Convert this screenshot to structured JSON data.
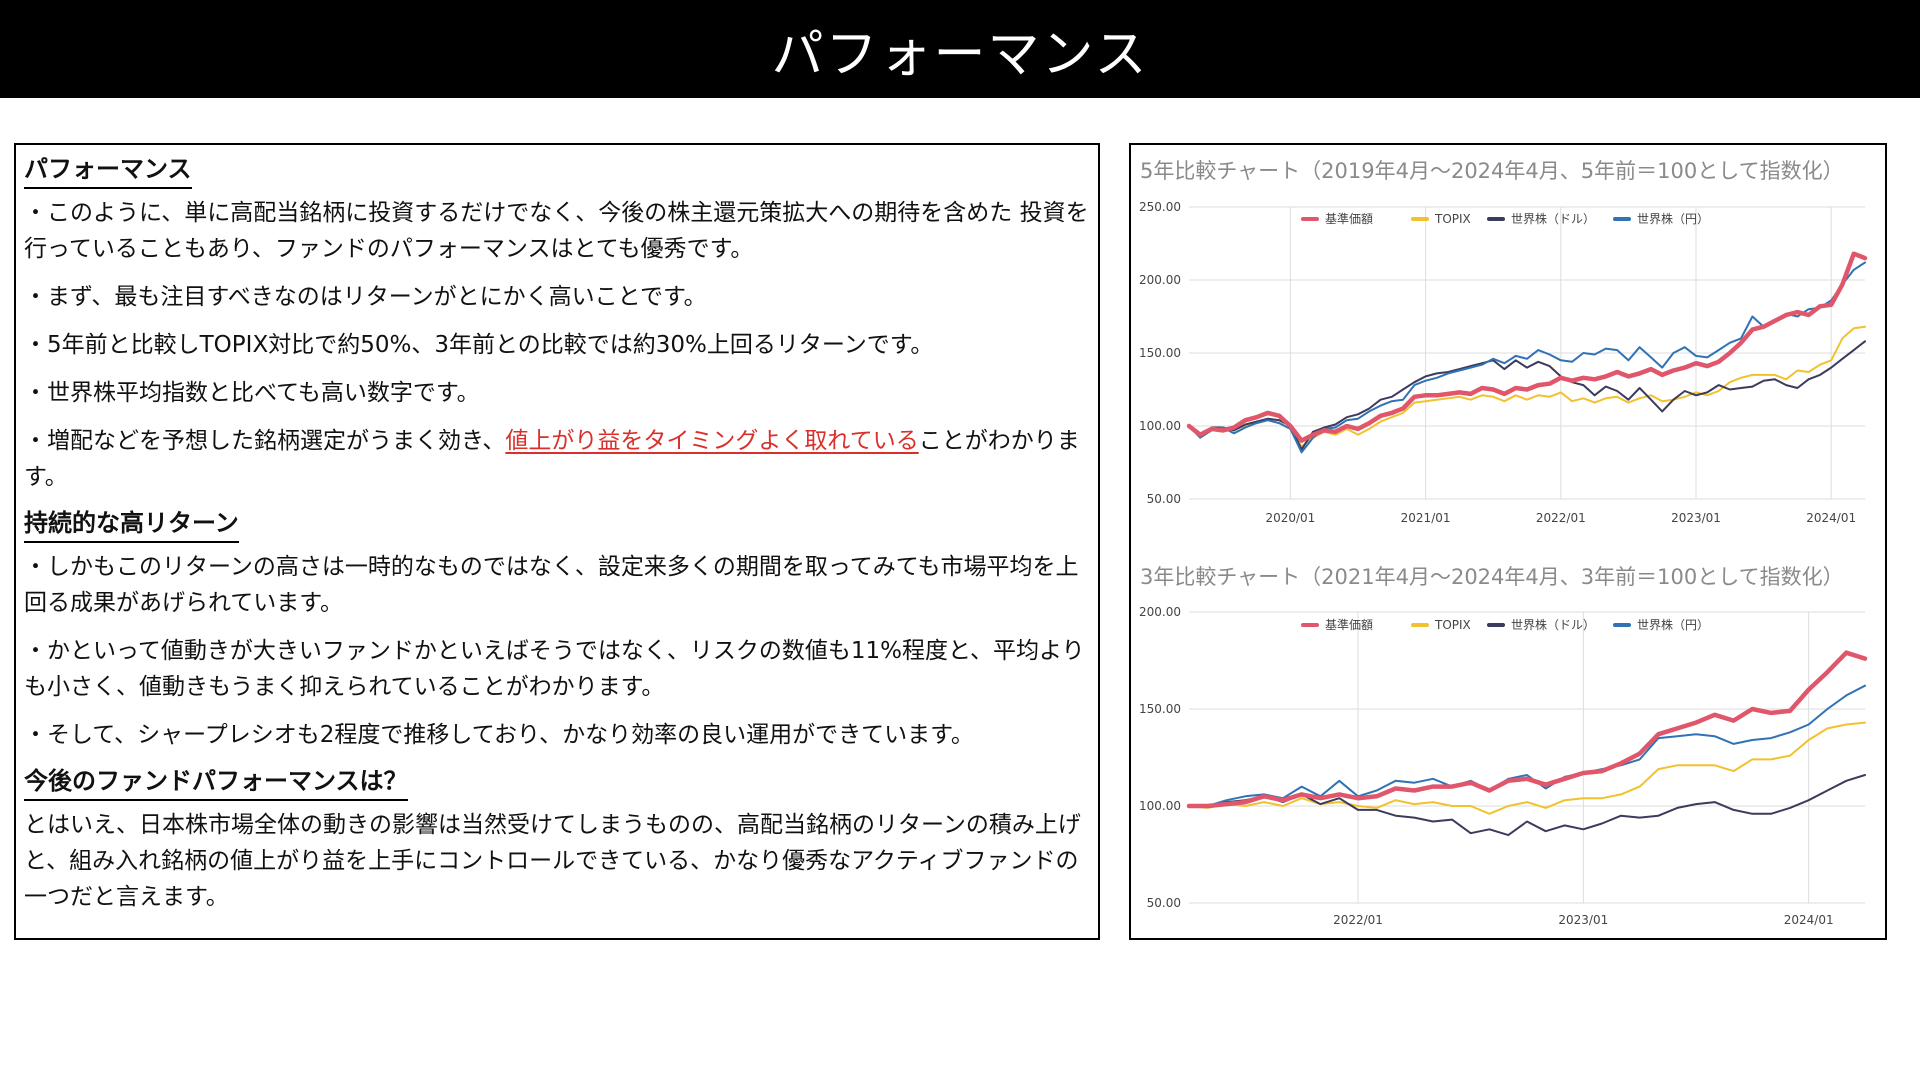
{
  "page_title": "パフォーマンス",
  "left_panel": {
    "s1_heading": "パフォーマンス",
    "s1_p1": "・このように、単に高配当銘柄に投資するだけでなく、今後の株主還元策拡大への期待を含めた 投資を行っていることもあり、ファンドのパフォーマンスはとても優秀です。",
    "s1_p2": "・まず、最も注目すべきなのはリターンがとにかく高いことです。",
    "s1_p3": "・5年前と比較しTOPIX対比で約50%、3年前との比較では約30%上回るリターンです。",
    "s1_p4": "・世界株平均指数と比べても高い数字です。",
    "s1_p5_pre": "・増配などを予想した銘柄選定がうまく効き、",
    "s1_p5_red": "値上がり益をタイミングよく取れている",
    "s1_p5_post": "ことがわかりま す。",
    "s2_heading": "持続的な高リターン",
    "s2_p1": "・しかもこのリターンの高さは一時的なものではなく、設定来多くの期間を取ってみても市場平均を上回る成果があげられています。",
    "s2_p2": "・かといって値動きが大きいファンドかといえばそうではなく、リスクの数値も11%程度と、平均よりも小さく、値動きもうまく抑えられていることがわかります。",
    "s2_p3": "・そして、シャープレシオも2程度で推移しており、かなり効率の良い運用ができています。",
    "s3_heading": "今後のファンドパフォーマンスは？",
    "s3_p1": "とはいえ、日本株市場全体の動きの影響は当然受けてしまうものの、高配当銘柄のリターンの積み上げと、組み入れ銘柄の値上がり益を上手にコントロールできている、かなり優秀なアクティブファンドの一つだと言えます。"
  },
  "colors": {
    "fund": "#e0566b",
    "topix": "#f2c12e",
    "world_usd": "#3b3b5c",
    "world_jpy": "#2f73b5",
    "accent_red": "#d9302c",
    "grid": "#dddddd"
  },
  "chart_data": [
    {
      "type": "line",
      "title": "5年比較チャート（2019年4月〜2024年4月、5年前＝100として指数化）",
      "xlabel": "",
      "ylabel": "",
      "x_range": [
        2019.25,
        2024.25
      ],
      "ylim": [
        50,
        250
      ],
      "yticks": [
        "50.00",
        "100.00",
        "150.00",
        "200.00",
        "250.00"
      ],
      "xticks": [
        {
          "x": 2020.0,
          "label": "2020/01"
        },
        {
          "x": 2021.0,
          "label": "2021/01"
        },
        {
          "x": 2022.0,
          "label": "2022/01"
        },
        {
          "x": 2023.0,
          "label": "2023/01"
        },
        {
          "x": 2024.0,
          "label": "2024/01"
        }
      ],
      "grid": true,
      "legend_position": "top",
      "x": [
        2019.25,
        2019.333,
        2019.417,
        2019.5,
        2019.583,
        2019.667,
        2019.75,
        2019.833,
        2019.917,
        2020.0,
        2020.083,
        2020.167,
        2020.25,
        2020.333,
        2020.417,
        2020.5,
        2020.583,
        2020.667,
        2020.75,
        2020.833,
        2020.917,
        2021.0,
        2021.083,
        2021.167,
        2021.25,
        2021.333,
        2021.417,
        2021.5,
        2021.583,
        2021.667,
        2021.75,
        2021.833,
        2021.917,
        2022.0,
        2022.083,
        2022.167,
        2022.25,
        2022.333,
        2022.417,
        2022.5,
        2022.583,
        2022.667,
        2022.75,
        2022.833,
        2022.917,
        2023.0,
        2023.083,
        2023.167,
        2023.25,
        2023.333,
        2023.417,
        2023.5,
        2023.583,
        2023.667,
        2023.75,
        2023.833,
        2023.917,
        2024.0,
        2024.083,
        2024.167,
        2024.25
      ],
      "series": [
        {
          "name": "基準価額",
          "key": "fund",
          "width": 4.5,
          "values": [
            100,
            94,
            98,
            97,
            99,
            104,
            106,
            109,
            107,
            100,
            90,
            94,
            97,
            96,
            100,
            98,
            102,
            107,
            109,
            112,
            120,
            121,
            121,
            122,
            123,
            122,
            126,
            125,
            122,
            126,
            125,
            128,
            129,
            133,
            131,
            133,
            132,
            134,
            137,
            134,
            136,
            139,
            135,
            138,
            140,
            143,
            141,
            144,
            150,
            157,
            166,
            168,
            172,
            176,
            178,
            176,
            182,
            183,
            197,
            218,
            215
          ]
        },
        {
          "name": "TOPIX",
          "key": "topix",
          "width": 2,
          "values": [
            100,
            93,
            98,
            96,
            98,
            100,
            102,
            104,
            102,
            98,
            86,
            92,
            96,
            94,
            98,
            94,
            98,
            103,
            106,
            109,
            116,
            117,
            118,
            119,
            120,
            118,
            121,
            120,
            117,
            121,
            118,
            121,
            120,
            123,
            117,
            119,
            116,
            119,
            120,
            116,
            119,
            121,
            117,
            118,
            120,
            123,
            121,
            124,
            130,
            133,
            135,
            135,
            135,
            132,
            138,
            137,
            142,
            145,
            160,
            167,
            168
          ]
        },
        {
          "name": "世界株（ドル）",
          "key": "world_usd",
          "width": 2,
          "values": [
            100,
            93,
            99,
            99,
            97,
            101,
            103,
            105,
            104,
            100,
            84,
            96,
            99,
            101,
            106,
            108,
            112,
            118,
            120,
            125,
            130,
            134,
            136,
            137,
            139,
            141,
            143,
            145,
            139,
            145,
            140,
            144,
            141,
            134,
            130,
            128,
            121,
            127,
            124,
            118,
            126,
            118,
            110,
            118,
            124,
            121,
            123,
            128,
            125,
            126,
            127,
            131,
            132,
            128,
            126,
            132,
            135,
            140,
            146,
            152,
            158
          ]
        },
        {
          "name": "世界株（円）",
          "key": "world_jpy",
          "width": 2,
          "values": [
            100,
            92,
            97,
            99,
            95,
            99,
            102,
            104,
            102,
            98,
            82,
            92,
            98,
            99,
            104,
            105,
            110,
            114,
            117,
            118,
            128,
            131,
            133,
            136,
            138,
            140,
            142,
            146,
            143,
            148,
            146,
            152,
            149,
            145,
            144,
            150,
            149,
            153,
            152,
            145,
            154,
            147,
            140,
            150,
            154,
            148,
            147,
            152,
            157,
            160,
            175,
            168,
            172,
            177,
            175,
            180,
            181,
            186,
            197,
            207,
            212
          ]
        }
      ]
    },
    {
      "type": "line",
      "title": "3年比較チャート（2021年4月〜2024年4月、3年前＝100として指数化）",
      "xlabel": "",
      "ylabel": "",
      "x_range": [
        2021.25,
        2024.25
      ],
      "ylim": [
        50,
        200
      ],
      "yticks": [
        "50.00",
        "100.00",
        "150.00",
        "200.00"
      ],
      "xticks": [
        {
          "x": 2022.0,
          "label": "2022/01"
        },
        {
          "x": 2023.0,
          "label": "2023/01"
        },
        {
          "x": 2024.0,
          "label": "2024/01"
        }
      ],
      "grid": true,
      "legend_position": "top",
      "x": [
        2021.25,
        2021.333,
        2021.417,
        2021.5,
        2021.583,
        2021.667,
        2021.75,
        2021.833,
        2021.917,
        2022.0,
        2022.083,
        2022.167,
        2022.25,
        2022.333,
        2022.417,
        2022.5,
        2022.583,
        2022.667,
        2022.75,
        2022.833,
        2022.917,
        2023.0,
        2023.083,
        2023.167,
        2023.25,
        2023.333,
        2023.417,
        2023.5,
        2023.583,
        2023.667,
        2023.75,
        2023.833,
        2023.917,
        2024.0,
        2024.083,
        2024.167,
        2024.25
      ],
      "series": [
        {
          "name": "基準価額",
          "key": "fund",
          "width": 4.5,
          "values": [
            100,
            100,
            101,
            102,
            105,
            103,
            106,
            104,
            106,
            104,
            105,
            109,
            108,
            110,
            110,
            112,
            108,
            113,
            114,
            111,
            114,
            117,
            118,
            122,
            127,
            137,
            140,
            143,
            147,
            144,
            150,
            148,
            149,
            160,
            169,
            179,
            176
          ]
        },
        {
          "name": "TOPIX",
          "key": "topix",
          "width": 2,
          "values": [
            100,
            99,
            101,
            100,
            102,
            100,
            104,
            101,
            102,
            100,
            99,
            103,
            101,
            102,
            100,
            100,
            96,
            100,
            102,
            99,
            103,
            104,
            104,
            106,
            110,
            119,
            121,
            121,
            121,
            118,
            124,
            124,
            126,
            134,
            140,
            142,
            143
          ]
        },
        {
          "name": "世界株（ドル）",
          "key": "world_usd",
          "width": 2,
          "values": [
            100,
            100,
            102,
            103,
            105,
            102,
            106,
            101,
            104,
            98,
            98,
            95,
            94,
            92,
            93,
            86,
            88,
            85,
            92,
            87,
            90,
            88,
            91,
            95,
            94,
            95,
            99,
            101,
            102,
            98,
            96,
            96,
            99,
            103,
            108,
            113,
            116
          ]
        },
        {
          "name": "世界株（円）",
          "key": "world_jpy",
          "width": 2,
          "values": [
            100,
            100,
            103,
            105,
            106,
            104,
            110,
            105,
            113,
            105,
            108,
            113,
            112,
            114,
            110,
            113,
            108,
            114,
            116,
            109,
            115,
            117,
            119,
            121,
            124,
            135,
            136,
            137,
            136,
            132,
            134,
            135,
            138,
            142,
            150,
            157,
            162
          ]
        }
      ]
    }
  ]
}
